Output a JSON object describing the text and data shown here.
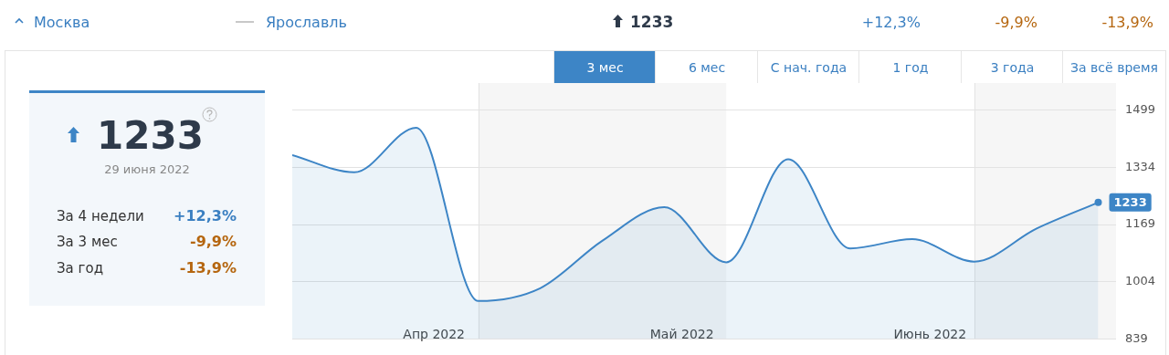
{
  "chart_data": {
    "type": "area",
    "x": [
      "2022-03-30",
      "2022-04-06",
      "2022-04-13",
      "2022-04-20",
      "2022-04-27",
      "2022-05-04",
      "2022-05-11",
      "2022-05-18",
      "2022-05-25",
      "2022-06-01",
      "2022-06-08",
      "2022-06-15",
      "2022-06-22",
      "2022-06-29"
    ],
    "series": [
      {
        "color": "#3d85c6",
        "values": [
          1370,
          1320,
          1449,
          948,
          985,
          1122,
          1219,
          1060,
          1358,
          1100,
          1127,
          1062,
          1157,
          1233
        ],
        "value_labels": [
          null,
          null,
          null,
          null,
          null,
          null,
          null,
          null,
          null,
          null,
          null,
          null,
          null,
          "1233"
        ]
      }
    ],
    "xlim": [
      "2022-03-30",
      "2022-07-01"
    ],
    "xticks": [
      {
        "value": "2022-04-15",
        "label": "Апр 2022"
      },
      {
        "value": "2022-05-13",
        "label": "Май 2022"
      },
      {
        "value": "2022-06-10",
        "label": "Июнь 2022"
      }
    ],
    "ylim": [
      839,
      1578
    ],
    "yticks": [
      839,
      1004,
      1169,
      1334,
      1499
    ],
    "grid": "y",
    "legend": false,
    "bands": [
      {
        "axis": "x",
        "from": "2022-04-20",
        "to": "2022-05-18",
        "color": "#f6f6f6"
      },
      {
        "axis": "x",
        "from": "2022-06-15",
        "to": "2022-07-01",
        "color": "#f6f6f6"
      }
    ],
    "annotations": [
      "Москва",
      "Ярославль",
      "1233",
      "+12,3%",
      "-9,9%",
      "-13,9%",
      "3 мес",
      "6 мес",
      "С нач. года",
      "1 год",
      "3 года",
      "За всё время",
      "1233",
      "29 июня 2022",
      "За 4 недели",
      "+12,3%",
      "За 3 мес",
      "-9,9%",
      "За год",
      "-13,9%"
    ]
  }
}
